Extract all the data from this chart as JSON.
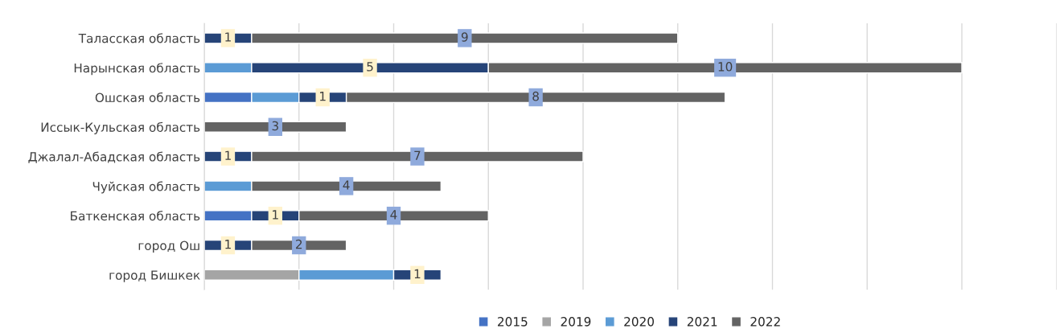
{
  "chart_data": {
    "type": "bar",
    "orientation": "horizontal",
    "stacked": true,
    "categories": [
      "Таласская область",
      "Нарынская область",
      "Ошская область",
      "Иссык-Кульская область",
      "Джалал-Абадская область",
      "Чуйская область",
      "Баткенская область",
      "город Ош",
      "город Бишкек"
    ],
    "series": [
      {
        "name": "2015",
        "color": "#4472c4",
        "values": [
          null,
          null,
          1,
          null,
          null,
          null,
          1,
          null,
          null
        ]
      },
      {
        "name": "2019",
        "color": "#a5a5a5",
        "values": [
          null,
          null,
          null,
          null,
          null,
          null,
          null,
          null,
          2
        ]
      },
      {
        "name": "2020",
        "color": "#5b9bd5",
        "values": [
          null,
          1,
          1,
          null,
          null,
          1,
          null,
          null,
          2
        ]
      },
      {
        "name": "2021",
        "color": "#264478",
        "values": [
          1,
          5,
          1,
          null,
          1,
          null,
          1,
          1,
          1
        ],
        "value_labels": [
          "1",
          "5",
          "1",
          null,
          "1",
          null,
          "1",
          "1",
          "1"
        ]
      },
      {
        "name": "2022",
        "color": "#636363",
        "values": [
          9,
          10,
          8,
          3,
          7,
          4,
          4,
          2,
          null
        ],
        "value_labels": [
          "9",
          "10",
          "8",
          "3",
          "7",
          "4",
          "4",
          "2",
          null
        ]
      }
    ],
    "xlim": [
      0,
      18
    ],
    "xticks": [
      {
        "value": 0,
        "label": null
      },
      {
        "value": 2,
        "label": null
      },
      {
        "value": 4,
        "label": null
      },
      {
        "value": 6,
        "label": null
      },
      {
        "value": 8,
        "label": null
      },
      {
        "value": 10,
        "label": null
      },
      {
        "value": 12,
        "label": null
      },
      {
        "value": 14,
        "label": null
      },
      {
        "value": 16,
        "label": null
      },
      {
        "value": 18,
        "label": null
      }
    ],
    "tick_labels": "y",
    "grid": "x",
    "legend": "bottom"
  }
}
